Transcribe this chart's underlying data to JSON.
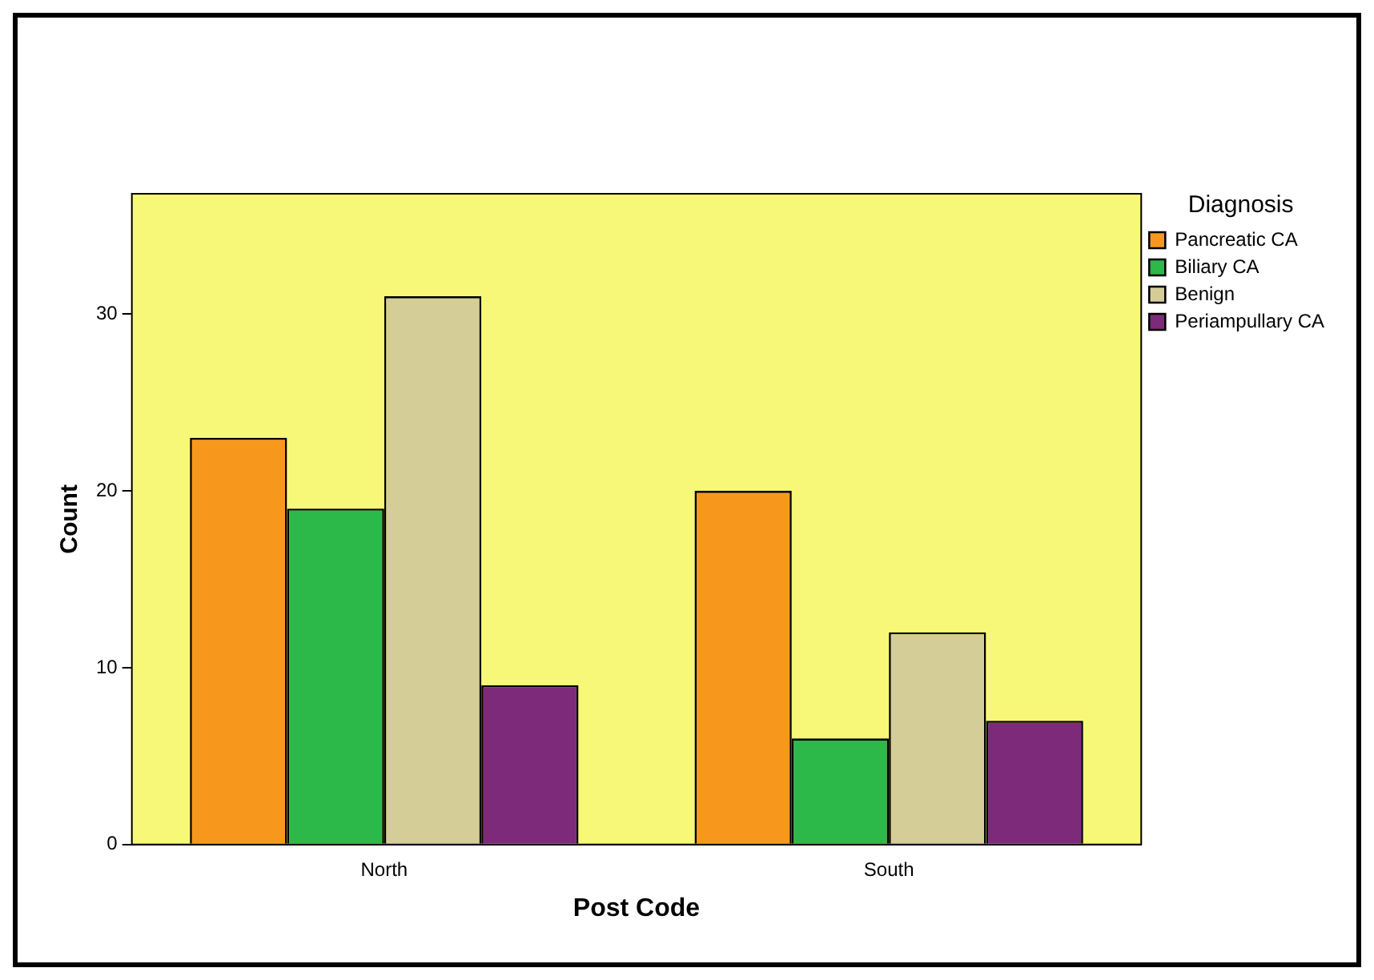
{
  "chart_data": {
    "type": "bar",
    "xlabel": "Post Code",
    "ylabel": "Count",
    "legend_title": "Diagnosis",
    "categories": [
      "North",
      "South"
    ],
    "series": [
      {
        "name": "Pancreatic CA",
        "color": "#f7981d",
        "values": [
          23,
          20
        ]
      },
      {
        "name": "Biliary CA",
        "color": "#2db84a",
        "values": [
          19,
          6
        ]
      },
      {
        "name": "Benign",
        "color": "#d5cd98",
        "values": [
          31,
          12
        ]
      },
      {
        "name": "Periampullary CA",
        "color": "#7d2a7b",
        "values": [
          9,
          7
        ]
      }
    ],
    "ylim": [
      0,
      36.8
    ],
    "yticks": [
      0,
      10,
      20,
      30
    ],
    "grid": false,
    "legend": "top right"
  }
}
